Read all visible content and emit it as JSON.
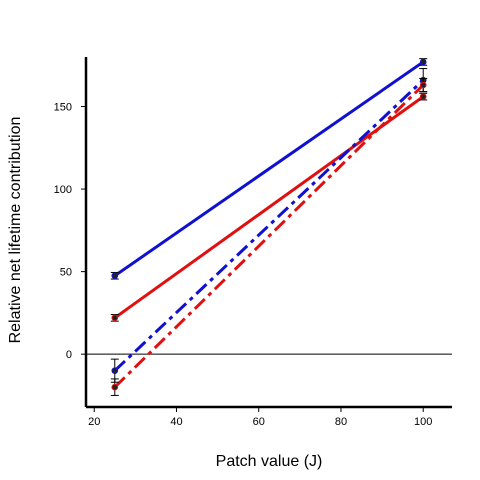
{
  "chart_data": {
    "type": "line",
    "title": "",
    "xlabel": "Patch value (J)",
    "ylabel": "Relative net lifetime contribution",
    "xlim": [
      18,
      107
    ],
    "ylim": [
      -32,
      180
    ],
    "x_ticks": [
      20,
      40,
      60,
      80,
      100
    ],
    "y_ticks": [
      0,
      50,
      100,
      150
    ],
    "reference_line_y": 0,
    "series": [
      {
        "color": "#1010d0",
        "dash": "solid",
        "points": [
          {
            "x": 25,
            "y": 47.5,
            "err": 2
          },
          {
            "x": 100,
            "y": 177,
            "err": 2
          }
        ]
      },
      {
        "color": "#e01010",
        "dash": "solid",
        "points": [
          {
            "x": 25,
            "y": 22,
            "err": 2
          },
          {
            "x": 100,
            "y": 156,
            "err": 2
          }
        ]
      },
      {
        "color": "#1010d0",
        "dash": "dashdot",
        "points": [
          {
            "x": 25,
            "y": -10,
            "err": 7
          },
          {
            "x": 100,
            "y": 166,
            "err": 7
          }
        ]
      },
      {
        "color": "#e01010",
        "dash": "dashdot",
        "points": [
          {
            "x": 25,
            "y": -20,
            "err": 5
          },
          {
            "x": 100,
            "y": 163,
            "err": 4
          }
        ]
      }
    ]
  }
}
